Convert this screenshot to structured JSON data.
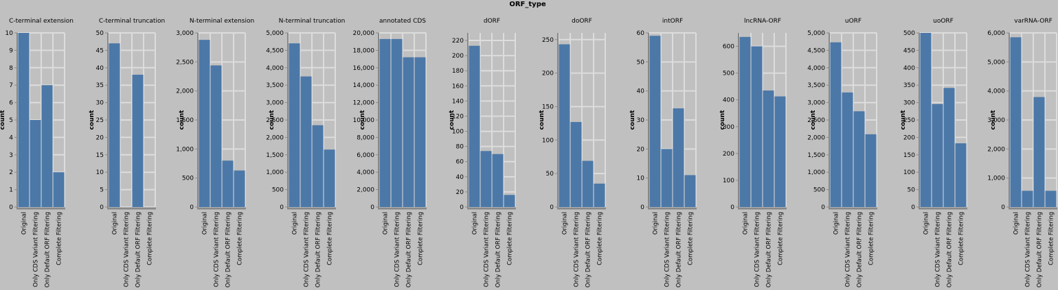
{
  "figure": {
    "title": "ORF_type"
  },
  "colors": {
    "background": "#c0c0c0",
    "grid": "#dddddd",
    "bar": "#4c78a8",
    "axis": "#888888"
  },
  "chart_data": {
    "type": "bar",
    "facet_title": "ORF_type",
    "ylabel": "count",
    "categories": [
      "Original",
      "Only CDS Variant Filtering",
      "Only Default ORF Filtering",
      "Complete Filtering"
    ],
    "panels": [
      {
        "name": "C-terminal extension",
        "values": [
          10,
          5,
          7,
          2
        ],
        "ylim": [
          0,
          10
        ],
        "ticks": [
          0,
          1,
          2,
          3,
          4,
          5,
          6,
          7,
          8,
          9,
          10
        ],
        "tick_labels": [
          "0",
          "1",
          "2",
          "3",
          "4",
          "5",
          "6",
          "7",
          "8",
          "9",
          "10"
        ]
      },
      {
        "name": "C-terminal truncation",
        "values": [
          47,
          0,
          38,
          0
        ],
        "ylim": [
          0,
          50
        ],
        "ticks": [
          0,
          5,
          10,
          15,
          20,
          25,
          30,
          35,
          40,
          45,
          50
        ],
        "tick_labels": [
          "0",
          "5",
          "10",
          "15",
          "20",
          "25",
          "30",
          "35",
          "40",
          "45",
          "50"
        ]
      },
      {
        "name": "N-terminal extension",
        "values": [
          2880,
          2440,
          800,
          630
        ],
        "ylim": [
          0,
          3000
        ],
        "ticks": [
          0,
          500,
          1000,
          1500,
          2000,
          2500,
          3000
        ],
        "tick_labels": [
          "0",
          "500",
          "1,000",
          "1,500",
          "2,000",
          "2,500",
          "3,000"
        ]
      },
      {
        "name": "N-terminal truncation",
        "values": [
          4700,
          3750,
          2350,
          1650
        ],
        "ylim": [
          0,
          5000
        ],
        "ticks": [
          0,
          500,
          1000,
          1500,
          2000,
          2500,
          3000,
          3500,
          4000,
          4500,
          5000
        ],
        "tick_labels": [
          "0",
          "500",
          "1,000",
          "1,500",
          "2,000",
          "2,500",
          "3,000",
          "3,500",
          "4,000",
          "4,500",
          "5,000"
        ]
      },
      {
        "name": "annotated CDS",
        "values": [
          19300,
          19300,
          17200,
          17200
        ],
        "ylim": [
          0,
          20000
        ],
        "ticks": [
          0,
          2000,
          4000,
          6000,
          8000,
          10000,
          12000,
          14000,
          16000,
          18000,
          20000
        ],
        "tick_labels": [
          "0",
          "2,000",
          "4,000",
          "6,000",
          "8,000",
          "10,000",
          "12,000",
          "14,000",
          "16,000",
          "18,000",
          "20,000"
        ]
      },
      {
        "name": "dORF",
        "values": [
          213,
          74,
          70,
          16
        ],
        "ylim": [
          0,
          230
        ],
        "ticks": [
          0,
          20,
          40,
          60,
          80,
          100,
          120,
          140,
          160,
          180,
          200,
          220
        ],
        "tick_labels": [
          "0",
          "20",
          "40",
          "60",
          "80",
          "100",
          "120",
          "140",
          "160",
          "180",
          "200",
          "220"
        ]
      },
      {
        "name": "doORF",
        "values": [
          243,
          127,
          69,
          35
        ],
        "ylim": [
          0,
          260
        ],
        "ticks": [
          0,
          50,
          100,
          150,
          200,
          250
        ],
        "tick_labels": [
          "0",
          "50",
          "100",
          "150",
          "200",
          "250"
        ]
      },
      {
        "name": "intORF",
        "values": [
          59,
          20,
          34,
          11
        ],
        "ylim": [
          0,
          60
        ],
        "ticks": [
          0,
          10,
          20,
          30,
          40,
          50,
          60
        ],
        "tick_labels": [
          "0",
          "10",
          "20",
          "30",
          "40",
          "50",
          "60"
        ]
      },
      {
        "name": "lncRNA-ORF",
        "values": [
          635,
          600,
          435,
          413
        ],
        "ylim": [
          0,
          650
        ],
        "ticks": [
          0,
          100,
          200,
          300,
          400,
          500,
          600
        ],
        "tick_labels": [
          "0",
          "100",
          "200",
          "300",
          "400",
          "500",
          "600"
        ]
      },
      {
        "name": "uORF",
        "values": [
          4730,
          3290,
          2750,
          2090
        ],
        "ylim": [
          0,
          5000
        ],
        "ticks": [
          0,
          500,
          1000,
          1500,
          2000,
          2500,
          3000,
          3500,
          4000,
          4500,
          5000
        ],
        "tick_labels": [
          "0",
          "500",
          "1,000",
          "1,500",
          "2,000",
          "2,500",
          "3,000",
          "3,500",
          "4,000",
          "4,500",
          "5,000"
        ]
      },
      {
        "name": "uoORF",
        "values": [
          500,
          296,
          342,
          183
        ],
        "ylim": [
          0,
          500
        ],
        "ticks": [
          0,
          50,
          100,
          150,
          200,
          250,
          300,
          350,
          400,
          450,
          500
        ],
        "tick_labels": [
          "0",
          "50",
          "100",
          "150",
          "200",
          "250",
          "300",
          "350",
          "400",
          "450",
          "500"
        ]
      },
      {
        "name": "varRNA-ORF",
        "values": [
          5850,
          560,
          3790,
          560
        ],
        "ylim": [
          0,
          6000
        ],
        "ticks": [
          0,
          1000,
          2000,
          3000,
          4000,
          5000,
          6000
        ],
        "tick_labels": [
          "0",
          "1,000",
          "2,000",
          "3,000",
          "4,000",
          "5,000",
          "6,000"
        ]
      }
    ]
  }
}
